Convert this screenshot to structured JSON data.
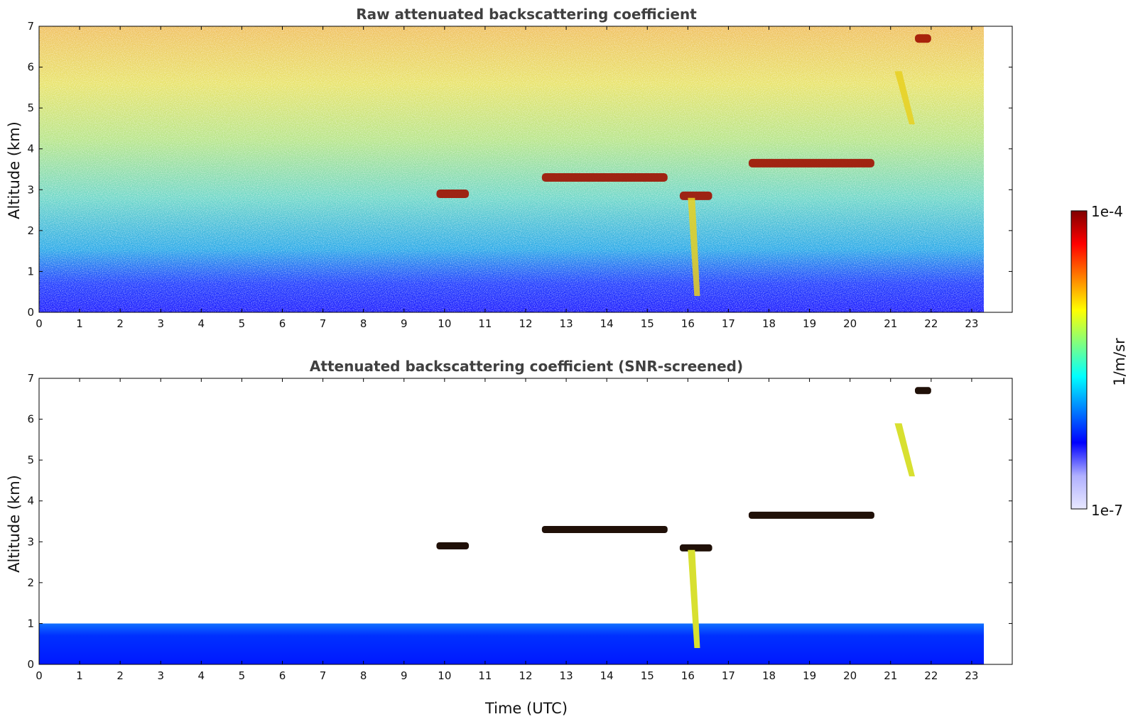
{
  "chart_data": [
    {
      "type": "heatmap",
      "title": "Raw attenuated backscattering coefficient",
      "xlabel": "",
      "ylabel": "Altitude (km)",
      "xlim": [
        0,
        24
      ],
      "ylim": [
        0,
        7
      ],
      "data_extent_x": [
        0,
        23.3
      ],
      "x_ticks": [
        "0",
        "1",
        "2",
        "3",
        "4",
        "5",
        "6",
        "7",
        "8",
        "9",
        "10",
        "11",
        "12",
        "13",
        "14",
        "15",
        "16",
        "17",
        "18",
        "19",
        "20",
        "21",
        "22",
        "23"
      ],
      "y_ticks": [
        "0",
        "1",
        "2",
        "3",
        "4",
        "5",
        "6",
        "7"
      ],
      "grid": false,
      "features": [
        {
          "feature": "cloud-layer",
          "x": [
            9.8,
            10.6
          ],
          "y": 2.9
        },
        {
          "feature": "cloud-layer",
          "x": [
            12.4,
            15.5
          ],
          "y": 3.3
        },
        {
          "feature": "cloud-layer",
          "x": [
            15.8,
            16.6
          ],
          "y": 2.85
        },
        {
          "feature": "cloud-layer",
          "x": [
            17.5,
            20.6
          ],
          "y": 3.65
        },
        {
          "feature": "cloud-layer",
          "x": [
            21.6,
            22.0
          ],
          "y": 6.7
        },
        {
          "feature": "precipitation",
          "x": [
            21.1,
            21.6
          ],
          "y": [
            4.6,
            5.9
          ]
        },
        {
          "feature": "precipitation",
          "x": [
            16.0,
            16.3
          ],
          "y": [
            0.4,
            2.8
          ]
        }
      ]
    },
    {
      "type": "heatmap",
      "title": "Attenuated backscattering coefficient (SNR-screened)",
      "xlabel": "Time (UTC)",
      "ylabel": "Altitude (km)",
      "xlim": [
        0,
        24
      ],
      "ylim": [
        0,
        7
      ],
      "data_extent_x": [
        0,
        23.3
      ],
      "x_ticks": [
        "0",
        "1",
        "2",
        "3",
        "4",
        "5",
        "6",
        "7",
        "8",
        "9",
        "10",
        "11",
        "12",
        "13",
        "14",
        "15",
        "16",
        "17",
        "18",
        "19",
        "20",
        "21",
        "22",
        "23"
      ],
      "y_ticks": [
        "0",
        "1",
        "2",
        "3",
        "4",
        "5",
        "6",
        "7"
      ],
      "grid": false,
      "boundary_layer_top_km": 1.0
    }
  ],
  "colorbar": {
    "label": "1/m/sr",
    "max_label": "1e-4",
    "min_label": "1e-7",
    "colors": [
      "#e8e8ff",
      "#b0b0ff",
      "#0000ff",
      "#0080ff",
      "#00ffff",
      "#80ff80",
      "#ffff00",
      "#ff8000",
      "#ff0000",
      "#800000"
    ]
  }
}
